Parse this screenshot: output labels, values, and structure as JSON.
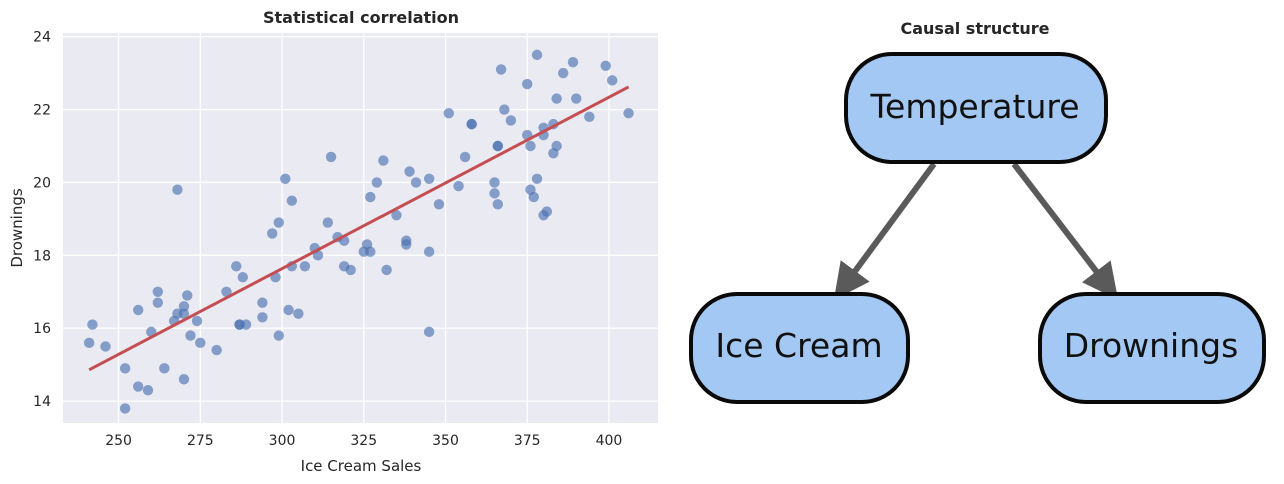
{
  "chart_data": [
    {
      "type": "scatter",
      "title": "Statistical correlation",
      "xlabel": "Ice Cream Sales",
      "ylabel": "Drownings",
      "xlim": [
        233,
        415
      ],
      "ylim": [
        13.4,
        24.1
      ],
      "xticks": [
        "250",
        "275",
        "300",
        "325",
        "350",
        "375",
        "400"
      ],
      "yticks": [
        "14",
        "16",
        "18",
        "20",
        "22",
        "24"
      ],
      "grid": true,
      "colors": {
        "points": "#4c72b0",
        "fit_line": "#c44e52",
        "background": "#eaeaf2"
      },
      "points": [
        [
          242,
          16.1
        ],
        [
          241,
          15.6
        ],
        [
          246,
          15.5
        ],
        [
          252,
          14.9
        ],
        [
          252,
          13.8
        ],
        [
          256,
          16.5
        ],
        [
          256,
          14.4
        ],
        [
          259,
          14.3
        ],
        [
          260,
          15.9
        ],
        [
          262,
          16.7
        ],
        [
          262,
          17.0
        ],
        [
          264,
          14.9
        ],
        [
          267,
          16.2
        ],
        [
          268,
          16.4
        ],
        [
          268,
          19.8
        ],
        [
          270,
          16.4
        ],
        [
          270,
          16.6
        ],
        [
          270,
          14.6
        ],
        [
          271,
          16.9
        ],
        [
          272,
          15.8
        ],
        [
          274,
          16.2
        ],
        [
          275,
          15.6
        ],
        [
          280,
          15.4
        ],
        [
          283,
          17.0
        ],
        [
          286,
          17.7
        ],
        [
          287,
          16.1
        ],
        [
          287,
          16.1
        ],
        [
          288,
          17.4
        ],
        [
          289,
          16.1
        ],
        [
          294,
          16.7
        ],
        [
          294,
          16.3
        ],
        [
          297,
          18.6
        ],
        [
          298,
          17.4
        ],
        [
          299,
          15.8
        ],
        [
          299,
          18.9
        ],
        [
          301,
          20.1
        ],
        [
          302,
          16.5
        ],
        [
          303,
          19.5
        ],
        [
          303,
          17.7
        ],
        [
          305,
          16.4
        ],
        [
          307,
          17.7
        ],
        [
          310,
          18.2
        ],
        [
          311,
          18.0
        ],
        [
          314,
          18.9
        ],
        [
          315,
          20.7
        ],
        [
          317,
          18.5
        ],
        [
          319,
          18.4
        ],
        [
          319,
          17.7
        ],
        [
          321,
          17.6
        ],
        [
          325,
          18.1
        ],
        [
          326,
          18.3
        ],
        [
          327,
          18.1
        ],
        [
          327,
          19.6
        ],
        [
          329,
          20.0
        ],
        [
          331,
          20.6
        ],
        [
          332,
          17.6
        ],
        [
          335,
          19.1
        ],
        [
          338,
          18.4
        ],
        [
          338,
          18.3
        ],
        [
          339,
          20.3
        ],
        [
          341,
          20.0
        ],
        [
          345,
          20.1
        ],
        [
          345,
          18.1
        ],
        [
          345,
          15.9
        ],
        [
          348,
          19.4
        ],
        [
          351,
          21.9
        ],
        [
          354,
          19.9
        ],
        [
          356,
          20.7
        ],
        [
          358,
          21.6
        ],
        [
          358,
          21.6
        ],
        [
          365,
          19.7
        ],
        [
          365,
          20.0
        ],
        [
          366,
          21.0
        ],
        [
          366,
          21.0
        ],
        [
          366,
          19.4
        ],
        [
          367,
          23.1
        ],
        [
          368,
          22.0
        ],
        [
          370,
          21.7
        ],
        [
          375,
          21.3
        ],
        [
          375,
          22.7
        ],
        [
          376,
          19.8
        ],
        [
          376,
          21.0
        ],
        [
          377,
          19.6
        ],
        [
          378,
          20.1
        ],
        [
          378,
          23.5
        ],
        [
          380,
          21.3
        ],
        [
          380,
          21.5
        ],
        [
          380,
          19.1
        ],
        [
          381,
          19.2
        ],
        [
          383,
          21.6
        ],
        [
          383,
          20.8
        ],
        [
          384,
          22.3
        ],
        [
          384,
          21.0
        ],
        [
          386,
          23.0
        ],
        [
          389,
          23.3
        ],
        [
          390,
          22.3
        ],
        [
          394,
          21.8
        ],
        [
          399,
          23.2
        ],
        [
          401,
          22.8
        ],
        [
          406,
          21.9
        ]
      ],
      "fit_line": {
        "x": [
          241,
          406
        ],
        "y": [
          14.86,
          22.62
        ]
      }
    },
    {
      "type": "diagram",
      "title": "Causal structure",
      "nodes": [
        {
          "id": "temperature",
          "label": "Temperature"
        },
        {
          "id": "ice_cream",
          "label": "Ice Cream"
        },
        {
          "id": "drownings",
          "label": "Drownings"
        }
      ],
      "edges": [
        {
          "from": "temperature",
          "to": "ice_cream"
        },
        {
          "from": "temperature",
          "to": "drownings"
        }
      ],
      "colors": {
        "node_fill": "#a4c8f4",
        "node_border": "#0a0a0a",
        "arrow": "#5a5a5a"
      }
    }
  ]
}
